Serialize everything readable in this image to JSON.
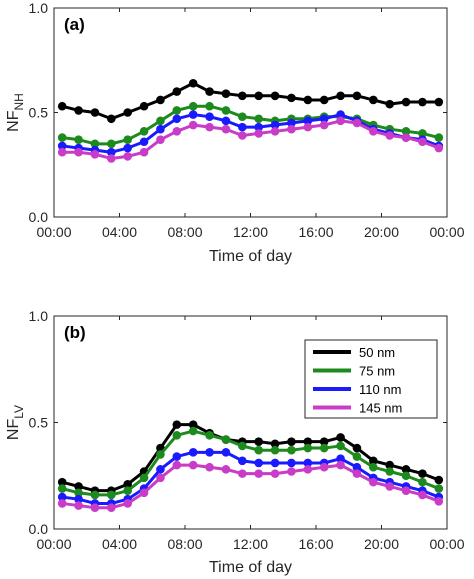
{
  "chart_data": [
    {
      "type": "line",
      "panel_label": "(a)",
      "xlabel": "Time of day",
      "ylabel": "NF",
      "ylabel_sub": "NH",
      "xlim": [
        0,
        24
      ],
      "ylim": [
        0,
        1
      ],
      "x_ticks": [
        0,
        4,
        8,
        12,
        16,
        20,
        24
      ],
      "x_tick_labels": [
        "00:00",
        "04:00",
        "08:00",
        "12:00",
        "16:00",
        "20:00",
        "00:00"
      ],
      "y_ticks": [
        0,
        0.5,
        1
      ],
      "y_tick_labels": [
        "0.0",
        "0.5",
        "1.0"
      ],
      "grid": false,
      "legend": null,
      "x": [
        0.5,
        1.5,
        2.5,
        3.5,
        4.5,
        5.5,
        6.5,
        7.5,
        8.5,
        9.5,
        10.5,
        11.5,
        12.5,
        13.5,
        14.5,
        15.5,
        16.5,
        17.5,
        18.5,
        19.5,
        20.5,
        21.5,
        22.5,
        23.5
      ],
      "series": [
        {
          "name": "50 nm",
          "color": "#000000",
          "values": [
            0.53,
            0.51,
            0.5,
            0.47,
            0.5,
            0.53,
            0.56,
            0.6,
            0.64,
            0.6,
            0.59,
            0.58,
            0.58,
            0.58,
            0.57,
            0.56,
            0.56,
            0.58,
            0.58,
            0.56,
            0.54,
            0.55,
            0.55,
            0.55
          ]
        },
        {
          "name": "75 nm",
          "color": "#1c8a1c",
          "values": [
            0.38,
            0.37,
            0.35,
            0.35,
            0.37,
            0.41,
            0.46,
            0.51,
            0.53,
            0.53,
            0.51,
            0.48,
            0.47,
            0.46,
            0.47,
            0.47,
            0.48,
            0.48,
            0.47,
            0.44,
            0.42,
            0.41,
            0.4,
            0.38
          ]
        },
        {
          "name": "110 nm",
          "color": "#1a1aff",
          "values": [
            0.34,
            0.33,
            0.32,
            0.31,
            0.33,
            0.36,
            0.42,
            0.47,
            0.49,
            0.48,
            0.46,
            0.43,
            0.43,
            0.44,
            0.45,
            0.46,
            0.47,
            0.49,
            0.46,
            0.42,
            0.4,
            0.38,
            0.37,
            0.34
          ]
        },
        {
          "name": "145 nm",
          "color": "#c83cc8",
          "values": [
            0.31,
            0.31,
            0.3,
            0.28,
            0.29,
            0.31,
            0.37,
            0.41,
            0.44,
            0.43,
            0.42,
            0.39,
            0.4,
            0.41,
            0.42,
            0.43,
            0.44,
            0.46,
            0.45,
            0.41,
            0.39,
            0.38,
            0.36,
            0.33
          ]
        }
      ]
    },
    {
      "type": "line",
      "panel_label": "(b)",
      "xlabel": "Time of day",
      "ylabel": "NF",
      "ylabel_sub": "LV",
      "xlim": [
        0,
        24
      ],
      "ylim": [
        0,
        1
      ],
      "x_ticks": [
        0,
        4,
        8,
        12,
        16,
        20,
        24
      ],
      "x_tick_labels": [
        "00:00",
        "04:00",
        "08:00",
        "12:00",
        "16:00",
        "20:00",
        "00:00"
      ],
      "y_ticks": [
        0,
        0.5,
        1
      ],
      "y_tick_labels": [
        "0.0",
        "0.5",
        "1.0"
      ],
      "grid": false,
      "legend": "top-right",
      "x": [
        0.5,
        1.5,
        2.5,
        3.5,
        4.5,
        5.5,
        6.5,
        7.5,
        8.5,
        9.5,
        10.5,
        11.5,
        12.5,
        13.5,
        14.5,
        15.5,
        16.5,
        17.5,
        18.5,
        19.5,
        20.5,
        21.5,
        22.5,
        23.5
      ],
      "series": [
        {
          "name": "50 nm",
          "color": "#000000",
          "values": [
            0.22,
            0.2,
            0.18,
            0.18,
            0.21,
            0.27,
            0.38,
            0.49,
            0.49,
            0.45,
            0.42,
            0.41,
            0.41,
            0.4,
            0.41,
            0.41,
            0.41,
            0.43,
            0.38,
            0.32,
            0.3,
            0.28,
            0.26,
            0.23
          ]
        },
        {
          "name": "75 nm",
          "color": "#1c8a1c",
          "values": [
            0.19,
            0.17,
            0.16,
            0.16,
            0.18,
            0.24,
            0.35,
            0.44,
            0.46,
            0.44,
            0.42,
            0.39,
            0.37,
            0.37,
            0.37,
            0.38,
            0.38,
            0.39,
            0.34,
            0.29,
            0.27,
            0.25,
            0.22,
            0.19
          ]
        },
        {
          "name": "110 nm",
          "color": "#1a1aff",
          "values": [
            0.15,
            0.14,
            0.12,
            0.12,
            0.14,
            0.19,
            0.28,
            0.34,
            0.36,
            0.36,
            0.36,
            0.32,
            0.31,
            0.31,
            0.31,
            0.31,
            0.31,
            0.33,
            0.29,
            0.24,
            0.22,
            0.2,
            0.18,
            0.15
          ]
        },
        {
          "name": "145 nm",
          "color": "#c83cc8",
          "values": [
            0.12,
            0.11,
            0.1,
            0.1,
            0.12,
            0.17,
            0.24,
            0.3,
            0.3,
            0.29,
            0.28,
            0.26,
            0.26,
            0.26,
            0.27,
            0.28,
            0.29,
            0.3,
            0.26,
            0.22,
            0.2,
            0.18,
            0.16,
            0.13
          ]
        }
      ]
    }
  ]
}
